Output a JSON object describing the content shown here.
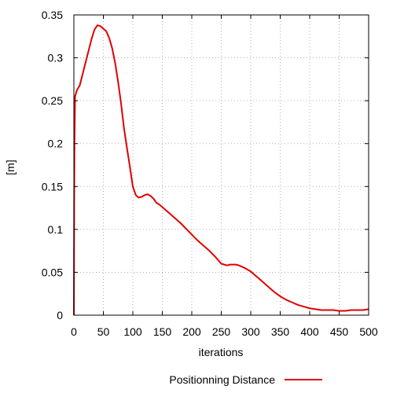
{
  "colors": {
    "series": "#e00000",
    "grid": "#a0a0a0",
    "axis": "#000000",
    "background": "#ffffff"
  },
  "chart_data": {
    "type": "line",
    "title": "",
    "xlabel": "iterations",
    "ylabel": "[m]",
    "xlim": [
      0,
      500
    ],
    "ylim": [
      0,
      0.35
    ],
    "x_ticks": [
      0,
      50,
      100,
      150,
      200,
      250,
      300,
      350,
      400,
      450,
      500
    ],
    "y_ticks": [
      0,
      0.05,
      0.1,
      0.15,
      0.2,
      0.25,
      0.3,
      0.35
    ],
    "y_tick_labels": [
      "0",
      "0.05",
      "0.1",
      "0.15",
      "0.2",
      "0.25",
      "0.3",
      "0.35"
    ],
    "grid": true,
    "grid_style": "dotted",
    "legend_position": "bottom-center",
    "series": [
      {
        "name": "Positionning Distance",
        "color": "#e00000",
        "x": [
          0,
          0.5,
          1,
          2,
          5,
          10,
          20,
          30,
          35,
          40,
          45,
          50,
          55,
          60,
          65,
          70,
          75,
          80,
          85,
          90,
          95,
          100,
          105,
          110,
          115,
          120,
          125,
          130,
          135,
          140,
          145,
          150,
          160,
          170,
          180,
          190,
          200,
          210,
          220,
          230,
          240,
          250,
          260,
          265,
          270,
          275,
          280,
          290,
          300,
          310,
          320,
          330,
          340,
          350,
          360,
          370,
          380,
          390,
          400,
          410,
          420,
          430,
          440,
          450,
          460,
          470,
          480,
          490,
          500
        ],
        "y": [
          0,
          0.13,
          0.2,
          0.255,
          0.262,
          0.268,
          0.295,
          0.322,
          0.333,
          0.338,
          0.337,
          0.334,
          0.331,
          0.323,
          0.311,
          0.294,
          0.272,
          0.247,
          0.218,
          0.195,
          0.173,
          0.15,
          0.14,
          0.137,
          0.138,
          0.14,
          0.141,
          0.139,
          0.136,
          0.131,
          0.129,
          0.126,
          0.12,
          0.114,
          0.108,
          0.101,
          0.094,
          0.087,
          0.081,
          0.075,
          0.068,
          0.06,
          0.058,
          0.059,
          0.059,
          0.059,
          0.058,
          0.055,
          0.051,
          0.045,
          0.039,
          0.033,
          0.027,
          0.022,
          0.018,
          0.015,
          0.012,
          0.01,
          0.008,
          0.007,
          0.006,
          0.006,
          0.006,
          0.005,
          0.005,
          0.006,
          0.006,
          0.006,
          0.007
        ]
      }
    ]
  }
}
